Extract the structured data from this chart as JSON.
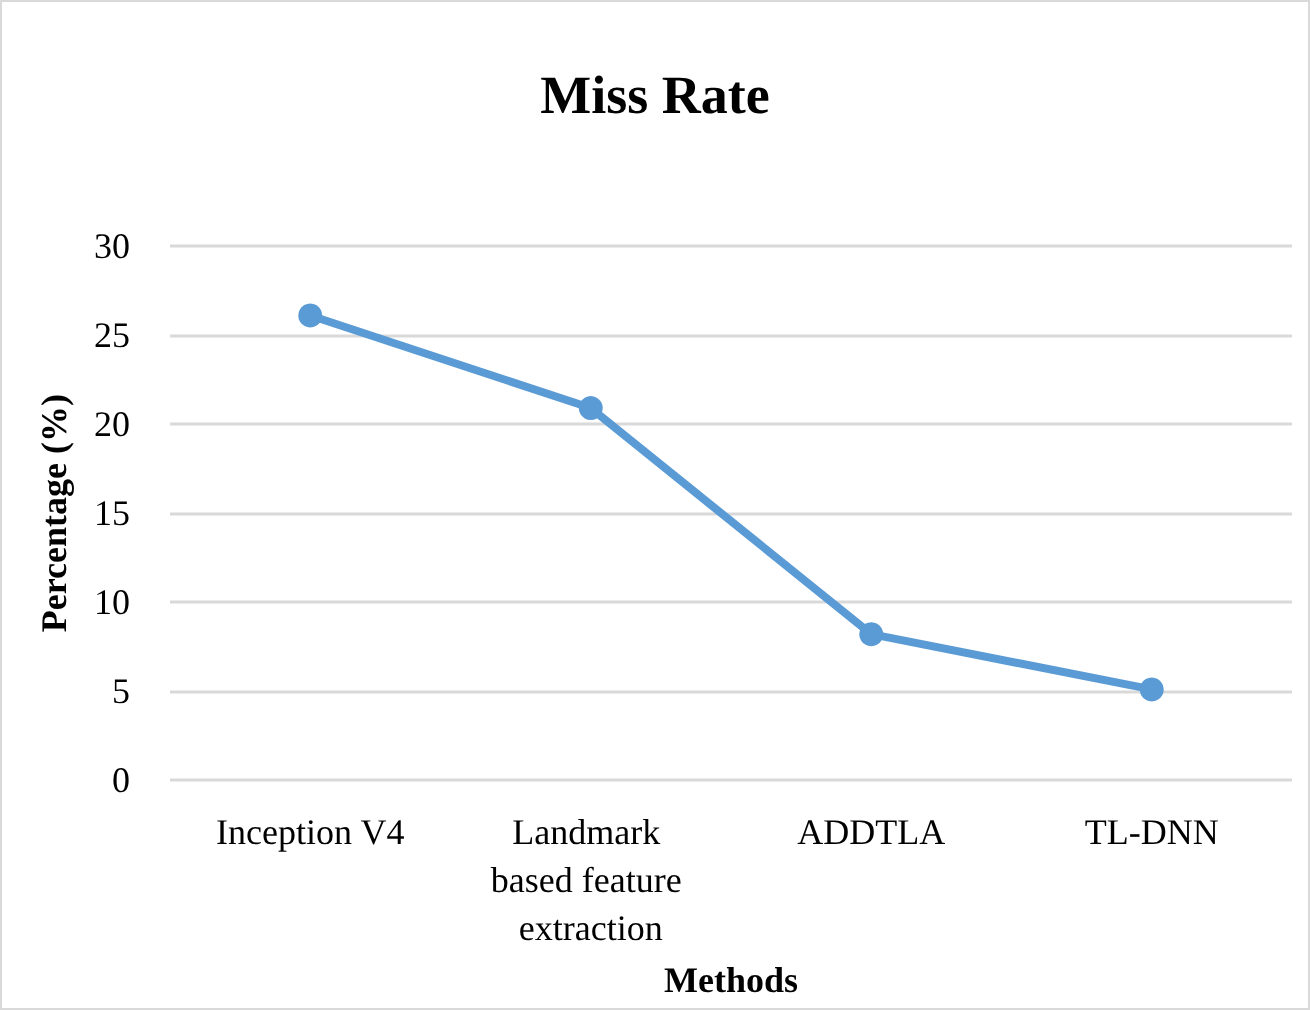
{
  "chart_data": {
    "type": "line",
    "title": "Miss Rate",
    "xlabel": "Methods",
    "ylabel": "Percentage (%)",
    "categories": [
      "Inception V4",
      "Landmark based feature extraction",
      "ADDTLA",
      "TL-DNN"
    ],
    "series": [
      {
        "color": "#5b9bd5",
        "values": [
          26.1,
          20.9,
          8.2,
          5.1
        ]
      }
    ],
    "ylim": [
      0,
      30
    ],
    "yticks": [
      0,
      5,
      10,
      15,
      20,
      25,
      30
    ],
    "grid": "y",
    "marker": "circle",
    "line_style": "solid"
  }
}
